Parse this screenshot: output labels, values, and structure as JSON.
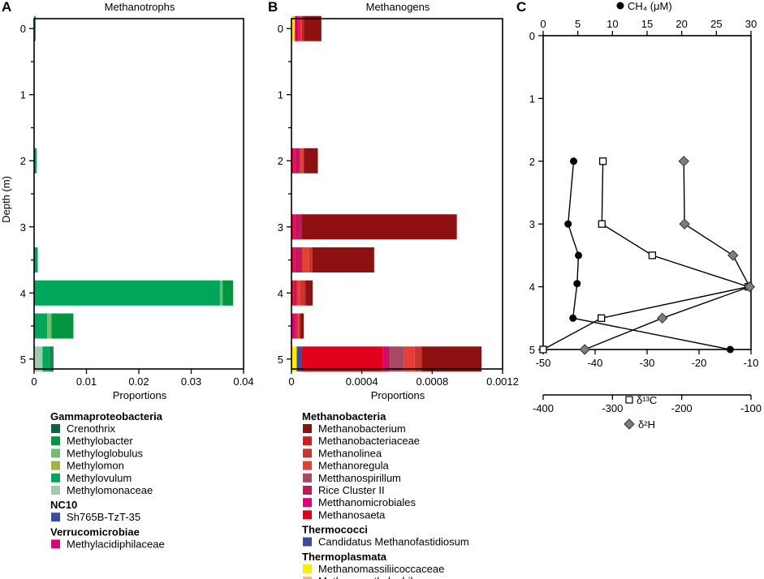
{
  "panels": {
    "a": {
      "letter": "A",
      "title": "Methanotrophs"
    },
    "b": {
      "letter": "B",
      "title": "Methanogens"
    },
    "c": {
      "letter": "C"
    }
  },
  "chart_data": [
    {
      "id": "methanotrophs",
      "type": "bar",
      "orientation": "horizontal",
      "stacked": true,
      "title": "Methanotrophs",
      "xlabel": "Proportions",
      "ylabel": "Depth (m)",
      "xlim": [
        0,
        0.04
      ],
      "xticks": [
        "0",
        "0.01",
        "0.02",
        "0.03",
        "0.04"
      ],
      "xtick_values": [
        0,
        0.01,
        0.02,
        0.03,
        0.04
      ],
      "ylim": [
        5.15,
        -0.15
      ],
      "yticks": [
        "0",
        "1",
        "2",
        "3",
        "4",
        "5"
      ],
      "ytick_values": [
        0,
        1,
        2,
        3,
        4,
        5
      ],
      "depths": [
        0,
        2,
        3.5,
        4,
        4.5,
        5
      ],
      "series": [
        {
          "name": "Methylomonaceae",
          "color": "#9fcbad",
          "values": [
            0,
            0,
            0,
            0,
            0,
            0.0016
          ]
        },
        {
          "name": "Methylovulum",
          "color": "#00a65a",
          "values": [
            0.0003,
            0.0005,
            0.0007,
            0.0355,
            0.0025,
            0.0013
          ]
        },
        {
          "name": "Methyloglobulus",
          "color": "#6fbf73",
          "values": [
            0,
            0,
            0,
            0.0005,
            0.0008,
            0
          ]
        },
        {
          "name": "Methylobacter",
          "color": "#00953f",
          "values": [
            0,
            0,
            0,
            0.002,
            0.0042,
            0.0006
          ]
        },
        {
          "name": "Sh765B-TzT-35",
          "color": "#3a4ea1",
          "values": [
            0,
            0,
            0,
            0,
            0,
            0.0002
          ]
        }
      ]
    },
    {
      "id": "methanogens",
      "type": "bar",
      "orientation": "horizontal",
      "stacked": true,
      "title": "Methanogens",
      "xlabel": "Proportions",
      "ylabel": "",
      "xlim": [
        0,
        0.0012
      ],
      "xticks": [
        "0",
        "0.0004",
        "0.0008",
        "0.0012"
      ],
      "xtick_values": [
        0,
        0.0004,
        0.0008,
        0.0012
      ],
      "ylim": [
        5.15,
        -0.15
      ],
      "yticks": [
        "0",
        "1",
        "2",
        "3",
        "4",
        "5"
      ],
      "ytick_values": [
        0,
        1,
        2,
        3,
        4,
        5
      ],
      "depths": [
        0,
        2,
        3,
        3.5,
        4,
        4.5,
        5
      ],
      "series": [
        {
          "name": "Methanomassiliicoccaceae",
          "color": "#ffec00",
          "values": [
            1e-05,
            0,
            0,
            0,
            0,
            0,
            3e-05
          ]
        },
        {
          "name": "Methanomethylophilaceae",
          "color": "#e8c170",
          "values": [
            1e-05,
            0,
            0,
            0,
            0,
            0,
            0
          ]
        },
        {
          "name": "Candidatus Methanofastidiosum",
          "color": "#3a4ea1",
          "values": [
            0,
            0,
            0,
            0,
            0,
            0,
            3e-05
          ]
        },
        {
          "name": "Methanosaeta",
          "color": "#e3001b",
          "values": [
            1e-05,
            1e-05,
            1e-05,
            1e-05,
            1e-05,
            0,
            0.00046
          ]
        },
        {
          "name": "Metthanomicrobiales",
          "color": "#e2007a",
          "values": [
            1e-05,
            1e-05,
            1e-05,
            1e-05,
            0,
            2e-05,
            2e-05
          ]
        },
        {
          "name": "Rice Cluster II",
          "color": "#c3185a",
          "values": [
            1e-05,
            3e-05,
            4e-05,
            4e-05,
            2e-05,
            1e-05,
            2e-05
          ]
        },
        {
          "name": "Metthanospirillum",
          "color": "#a54965",
          "values": [
            0,
            0,
            0,
            0,
            0,
            0,
            8e-05
          ]
        },
        {
          "name": "Methanoregula",
          "color": "#e63e36",
          "values": [
            1e-05,
            2e-05,
            0,
            4e-05,
            2e-05,
            1e-05,
            6e-05
          ]
        },
        {
          "name": "Methanolinea",
          "color": "#c8352a",
          "values": [
            0,
            0,
            0,
            2e-05,
            2e-05,
            1e-05,
            4e-05
          ]
        },
        {
          "name": "Methanobacteriaceae",
          "color": "#d01d1d",
          "values": [
            1e-05,
            0,
            0,
            0,
            1e-05,
            0,
            0
          ]
        },
        {
          "name": "Methanobacterium",
          "color": "#8e1010",
          "values": [
            0.0001,
            8e-05,
            0.00088,
            0.00035,
            4e-05,
            2e-05,
            0.00034
          ]
        }
      ]
    },
    {
      "id": "geochemistry",
      "type": "line",
      "orientation": "profile",
      "ylabel": "",
      "ylim": [
        0,
        5
      ],
      "yticks": [
        "0",
        "1",
        "2",
        "3",
        "4",
        "5"
      ],
      "ytick_values": [
        0,
        1,
        2,
        3,
        4,
        5
      ],
      "axes": [
        {
          "label": "CH₄ (μM)",
          "range": [
            0,
            30
          ],
          "ticks": [
            "0",
            "5",
            "10",
            "15",
            "20",
            "25",
            "30"
          ],
          "tick_values": [
            0,
            5,
            10,
            15,
            20,
            25,
            30
          ],
          "position": "top"
        },
        {
          "label": "δ¹³C",
          "range": [
            -50,
            -10
          ],
          "ticks": [
            "-50",
            "-40",
            "-30",
            "-20",
            "-10"
          ],
          "tick_values": [
            -50,
            -40,
            -30,
            -20,
            -10
          ],
          "position": "bottom"
        },
        {
          "label": "δ²H",
          "range": [
            -400,
            -100
          ],
          "ticks": [
            "-400",
            "-300",
            "-200",
            "-100"
          ],
          "tick_values": [
            -400,
            -300,
            -200,
            -100
          ],
          "position": "bottom-offset"
        }
      ],
      "series": [
        {
          "name": "CH₄ (μM)",
          "marker": "filled-circle",
          "axis": 0,
          "points": [
            [
              2,
              4.4
            ],
            [
              3,
              3.6
            ],
            [
              3.5,
              5.1
            ],
            [
              3.95,
              4.9
            ],
            [
              4.5,
              4.3
            ],
            [
              5,
              27.0
            ]
          ]
        },
        {
          "name": "δ¹³C",
          "marker": "open-square",
          "axis": 1,
          "points": [
            [
              2,
              -38.5
            ],
            [
              3,
              -38.7
            ],
            [
              3.5,
              -29.0
            ],
            [
              4,
              -10.5
            ],
            [
              4.5,
              -38.8
            ],
            [
              5,
              -50.0
            ]
          ]
        },
        {
          "name": "δ²H",
          "marker": "grey-diamond",
          "axis": 2,
          "points": [
            [
              2,
              -197
            ],
            [
              3,
              -196
            ],
            [
              3.5,
              -126
            ],
            [
              4,
              -102
            ],
            [
              4.5,
              -228
            ],
            [
              5,
              -340
            ]
          ]
        }
      ]
    }
  ],
  "legends": {
    "a": [
      {
        "heading": "Gammaproteobacteria",
        "items": [
          {
            "label": "Crenothrix",
            "color": "#006b3f"
          },
          {
            "label": "Methylobacter",
            "color": "#00953f"
          },
          {
            "label": "Methyloglobulus",
            "color": "#6fbf73"
          },
          {
            "label": "Methylomon",
            "color": "#a0b53a"
          },
          {
            "label": "Methylovulum",
            "color": "#00a65a"
          },
          {
            "label": "Methylomonaceae",
            "color": "#9fcbad"
          }
        ]
      },
      {
        "heading": "NC10",
        "items": [
          {
            "label": "Sh765B-TzT-35",
            "color": "#3a4ea1"
          }
        ]
      },
      {
        "heading": "Verrucomicrobiae",
        "items": [
          {
            "label": "Methylacidiphilaceae",
            "color": "#e2007a"
          }
        ]
      }
    ],
    "b": [
      {
        "heading": "Methanobacteria",
        "items": [
          {
            "label": "Methanobacterium",
            "color": "#8e1010"
          },
          {
            "label": "Methanobacteriaceae",
            "color": "#d01d1d"
          },
          {
            "label": "Methanolinea",
            "color": "#c8352a"
          },
          {
            "label": "Methanoregula",
            "color": "#e63e36"
          },
          {
            "label": "Metthanospirillum",
            "color": "#a54965"
          },
          {
            "label": "Rice Cluster II",
            "color": "#c3185a"
          },
          {
            "label": "Metthanomicrobiales",
            "color": "#e2007a"
          },
          {
            "label": "Methanosaeta",
            "color": "#e3001b"
          }
        ]
      },
      {
        "heading": "Thermococci",
        "items": [
          {
            "label": "Candidatus Methanofastidiosum",
            "color": "#3a4ea1"
          }
        ]
      },
      {
        "heading": "Thermoplasmata",
        "items": [
          {
            "label": "Methanomassiliicoccaceae",
            "color": "#ffec00"
          },
          {
            "label": "Methanomethylophilaceae",
            "color": "#e8c170"
          }
        ]
      }
    ]
  }
}
